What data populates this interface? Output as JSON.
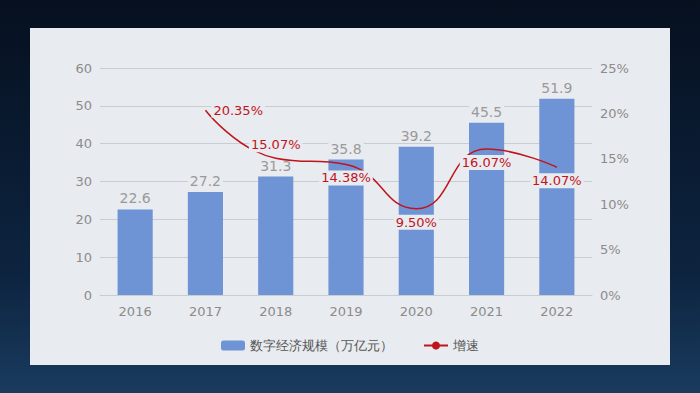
{
  "chart_data": {
    "type": "bar",
    "categories": [
      "2016",
      "2017",
      "2018",
      "2019",
      "2020",
      "2021",
      "2022"
    ],
    "series": [
      {
        "name": "数字经济规模（万亿元）",
        "type": "bar",
        "color": "#6f94d6",
        "values": [
          22.6,
          27.2,
          31.3,
          35.8,
          39.2,
          45.5,
          51.9
        ]
      },
      {
        "name": "增速",
        "type": "line",
        "axis": "y2",
        "color": "#c0141c",
        "line_style": "smooth",
        "marker": "none",
        "values": [
          null,
          20.35,
          15.07,
          14.38,
          9.5,
          16.07,
          14.07
        ],
        "value_labels": [
          null,
          "20.35%",
          "15.07%",
          "14.38%",
          "9.50%",
          "16.07%",
          "14.07%"
        ]
      }
    ],
    "ylim": [
      0,
      60
    ],
    "yticks": [
      0,
      10,
      20,
      30,
      40,
      50,
      60
    ],
    "y2lim": [
      0,
      25
    ],
    "y2ticks": [
      {
        "value": 0,
        "label": "0%"
      },
      {
        "value": 5,
        "label": "5%"
      },
      {
        "value": 10,
        "label": "10%"
      },
      {
        "value": 15,
        "label": "15%"
      },
      {
        "value": 20,
        "label": "20%"
      },
      {
        "value": 25,
        "label": "25%"
      }
    ],
    "grid": true,
    "legend": "bottom",
    "data_labels": true
  }
}
